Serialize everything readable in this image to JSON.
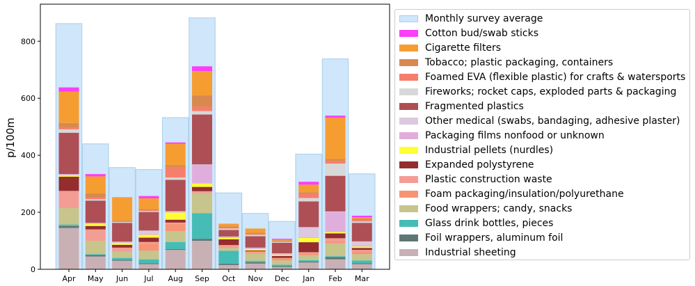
{
  "chart_data": {
    "type": "bar",
    "ylabel": "p/100m",
    "xlabel": "",
    "ylim": [
      0,
      930
    ],
    "yticks": [
      0,
      200,
      400,
      600,
      800
    ],
    "categories": [
      "Apr",
      "May",
      "Jun",
      "Jul",
      "Aug",
      "Sep",
      "Oct",
      "Nov",
      "Dec",
      "Jan",
      "Feb",
      "Mar"
    ],
    "background_series": {
      "name": "Monthly survey average",
      "color": "#d0e6fb",
      "edge": "#a6d0e8",
      "values": [
        862,
        440,
        357,
        350,
        532,
        882,
        268,
        196,
        168,
        404,
        738,
        335
      ]
    },
    "stacked_series": [
      {
        "name": "Industrial sheeting",
        "color": "#c9b0b5",
        "values": [
          145,
          45,
          30,
          18,
          68,
          100,
          15,
          20,
          8,
          24,
          35,
          18
        ]
      },
      {
        "name": "Foil wrappers, aluminum foil",
        "color": "#5e7775",
        "values": [
          7,
          5,
          3,
          3,
          3,
          7,
          5,
          5,
          3,
          3,
          8,
          3
        ]
      },
      {
        "name": "Glass drink bottles, pieces",
        "color": "#45bcb5",
        "values": [
          5,
          3,
          7,
          14,
          25,
          90,
          45,
          5,
          5,
          5,
          3,
          10
        ]
      },
      {
        "name": "Food wrappers; candy, snacks",
        "color": "#c7c48c",
        "values": [
          58,
          47,
          22,
          30,
          38,
          70,
          10,
          25,
          15,
          18,
          45,
          22
        ]
      },
      {
        "name": "Foam packaging/insulation/polyurethane",
        "color": "#f79474",
        "values": [
          2,
          2,
          2,
          25,
          25,
          2,
          2,
          2,
          7,
          5,
          7,
          10
        ]
      },
      {
        "name": "Plastic construction waste",
        "color": "#f49d95",
        "values": [
          58,
          38,
          12,
          6,
          5,
          5,
          8,
          6,
          2,
          5,
          11,
          5
        ]
      },
      {
        "name": "Expanded polystyrene",
        "color": "#942d2d",
        "values": [
          50,
          12,
          10,
          15,
          10,
          15,
          20,
          3,
          7,
          35,
          17,
          7
        ]
      },
      {
        "name": "Industrial pellets (nurdles)",
        "color": "#ffff33",
        "values": [
          5,
          7,
          7,
          10,
          25,
          12,
          5,
          5,
          4,
          15,
          5,
          5
        ]
      },
      {
        "name": "Packaging films nonfood or unknown",
        "color": "#e0aedd",
        "values": [
          2,
          2,
          2,
          3,
          3,
          65,
          3,
          3,
          3,
          3,
          70,
          3
        ]
      },
      {
        "name": "Other medical (swabs, bandaging, adhesive plaster)",
        "color": "#dcc8df",
        "values": [
          2,
          2,
          2,
          12,
          2,
          2,
          2,
          2,
          2,
          35,
          2,
          15
        ]
      },
      {
        "name": "Fragmented plastics",
        "color": "#ae4f55",
        "values": [
          145,
          78,
          66,
          65,
          110,
          175,
          23,
          40,
          37,
          90,
          125,
          65
        ]
      },
      {
        "name": "Fireworks; rocket caps, exploded parts & packaging",
        "color": "#d8d8d8",
        "values": [
          12,
          5,
          3,
          3,
          8,
          12,
          5,
          5,
          3,
          12,
          43,
          5
        ]
      },
      {
        "name": "Foamed EVA (flexible plastic) for crafts & watersports",
        "color": "#f67e6c",
        "values": [
          5,
          5,
          2,
          3,
          35,
          15,
          2,
          2,
          2,
          15,
          8,
          5
        ]
      },
      {
        "name": "Tobacco; plastic packaging, containers",
        "color": "#d9894f",
        "values": [
          17,
          15,
          3,
          4,
          8,
          40,
          5,
          5,
          3,
          5,
          8,
          5
        ]
      },
      {
        "name": "Cigarette filters",
        "color": "#f69d32",
        "values": [
          110,
          60,
          82,
          38,
          75,
          85,
          10,
          15,
          3,
          27,
          145,
          5
        ]
      },
      {
        "name": "Cotton bud/swab sticks",
        "color": "#fb3ef7",
        "values": [
          15,
          8,
          0,
          8,
          5,
          17,
          0,
          0,
          3,
          10,
          7,
          5
        ]
      }
    ]
  }
}
